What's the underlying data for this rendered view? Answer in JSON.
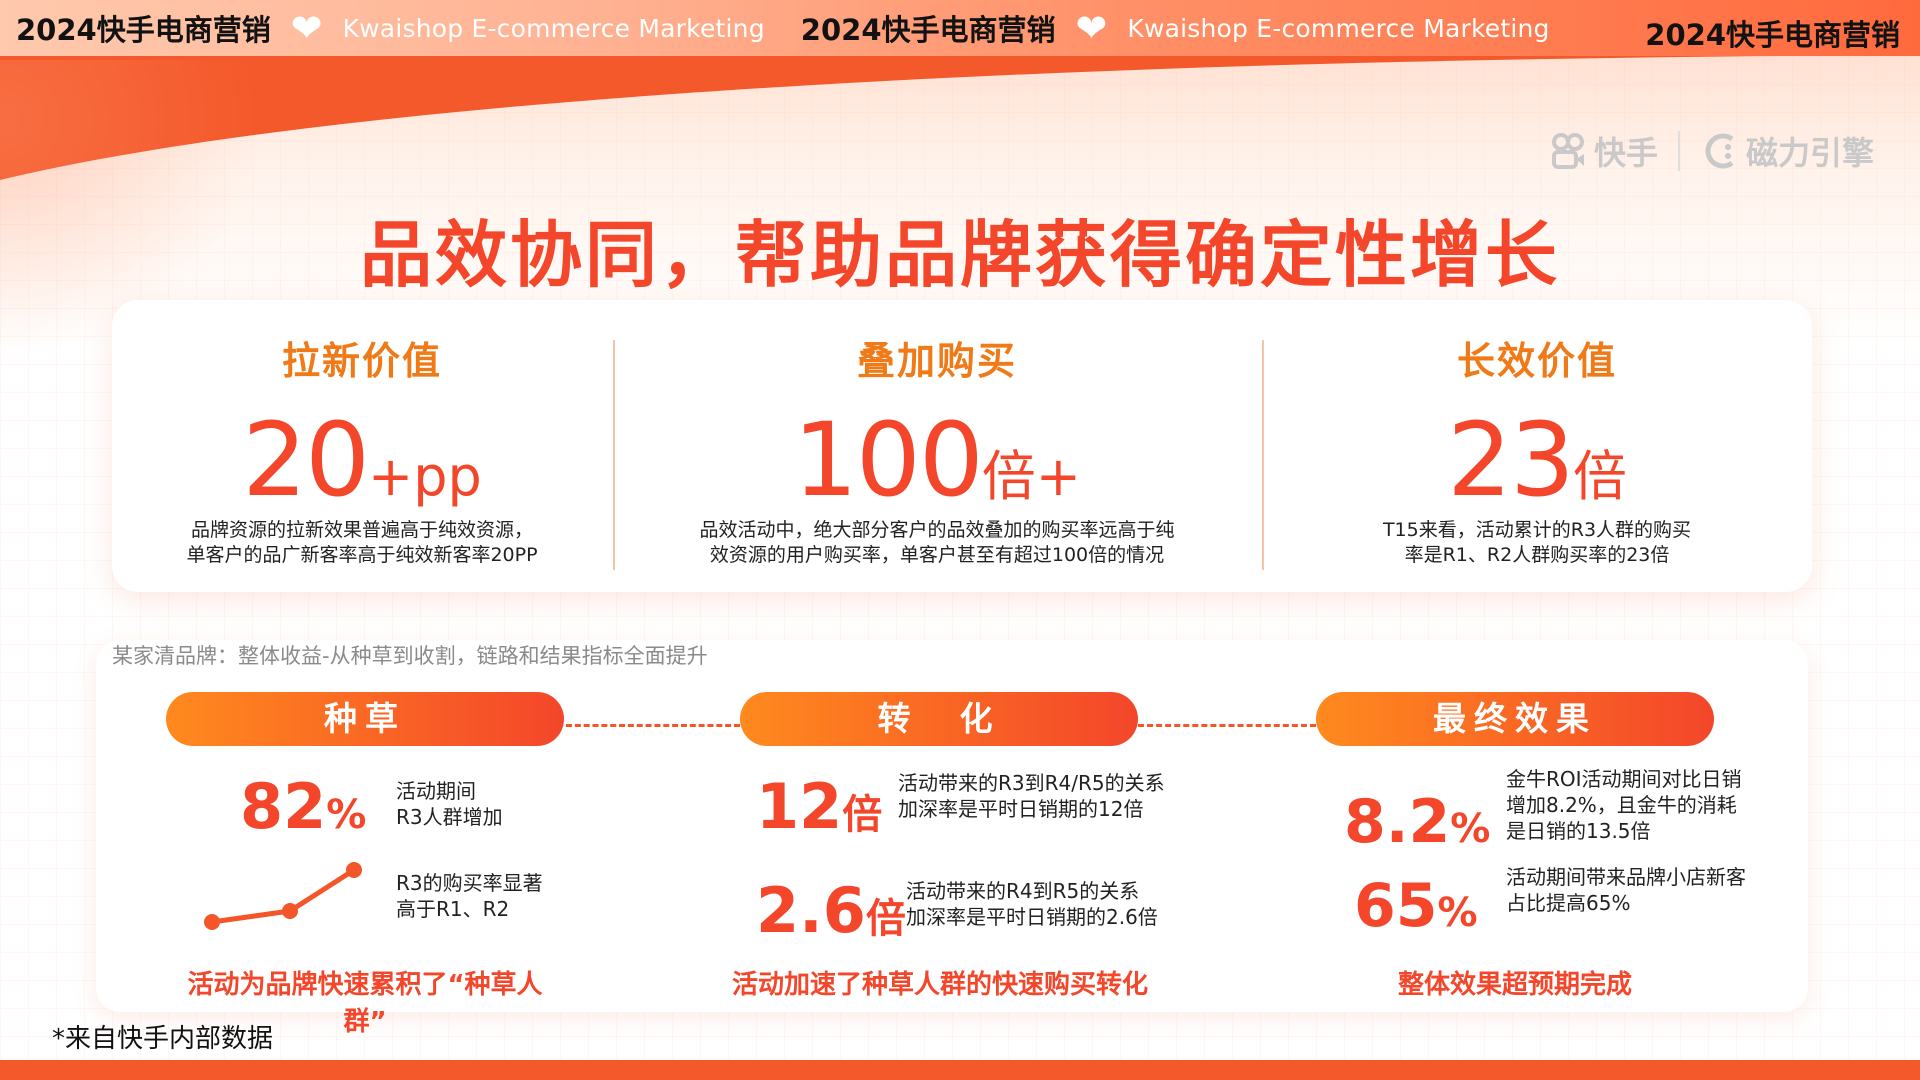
{
  "banner": {
    "cn": "2024快手电商营销",
    "en": "Kwaishop E-commerce Marketing",
    "cn_last": "2024快手电商营销"
  },
  "logos": {
    "brand1": "快手",
    "brand2": "磁力引擎"
  },
  "title": "品效协同，帮助品牌获得确定性增长",
  "top": [
    {
      "heading": "拉新价值",
      "value": "20",
      "suffix": "+pp",
      "desc": [
        "品牌资源的拉新效果普遍高于纯效资源，",
        "单客户的品广新客率高于纯效新客率20PP"
      ]
    },
    {
      "heading": "叠加购买",
      "value": "100",
      "suffix": "倍+",
      "desc": [
        "品效活动中，绝大部分客户的品效叠加的购买率远高于纯",
        "效资源的用户购买率，单客户甚至有超过100倍的情况"
      ]
    },
    {
      "heading": "长效价值",
      "value": "23",
      "suffix": "倍",
      "desc": [
        "T15来看，活动累计的R3人群的购买",
        "率是R1、R2人群购买率的23倍"
      ]
    }
  ],
  "note": "某家清品牌：整体收益-从种草到收割，链路和结果指标全面提升",
  "bottom": {
    "col1": {
      "pill": "种草",
      "stat_value": "82",
      "stat_suffix": "%",
      "stat_text": [
        "活动期间",
        "R3人群增加"
      ],
      "line_text": [
        "R3的购买率显著",
        "高于R1、R2"
      ],
      "footer": "活动为品牌快速累积了“种草人群”"
    },
    "col2": {
      "pill": "转　化",
      "stat1_value": "12",
      "stat1_suffix": "倍",
      "stat1_text": [
        "活动带来的R3到R4/R5的关系",
        "加深率是平时日销期的12倍"
      ],
      "stat2_value": "2.6",
      "stat2_suffix": "倍",
      "stat2_text": [
        "活动带来的R4到R5的关系",
        "加深率是平时日销期的2.6倍"
      ],
      "footer": "活动加速了种草人群的快速购买转化"
    },
    "col3": {
      "pill": "最终效果",
      "stat1_value": "8.2",
      "stat1_suffix": "%",
      "stat1_text": [
        "金牛ROI活动期间对比日销",
        "增加8.2%，且金牛的消耗",
        "是日销的13.5倍"
      ],
      "stat2_value": "65",
      "stat2_suffix": "%",
      "stat2_text": [
        "活动期间带来品牌小店新客",
        "占比提高65%"
      ],
      "footer": "整体效果超预期完成"
    }
  },
  "source": "*来自快手内部数据",
  "colors": {
    "accent": "#f4462a",
    "orange": "#f07a17",
    "bg": "#f4592b"
  },
  "icons": {
    "heart": "heart-icon",
    "kuaishou": "kuaishou-logo-icon",
    "cili": "cili-engine-logo-icon",
    "trend": "trend-line-icon"
  }
}
